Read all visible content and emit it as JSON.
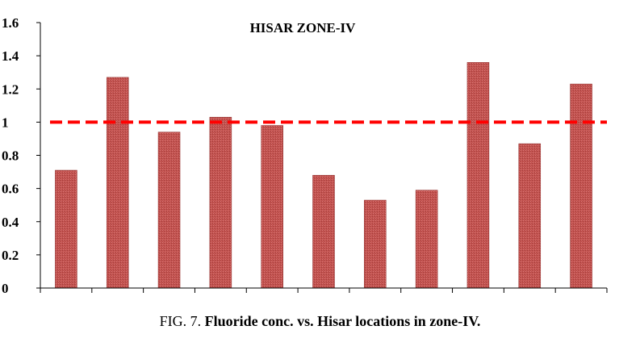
{
  "caption": {
    "prefix": "FIG. 7.",
    "text": "Fluoride conc. vs. Hisar locations in zone-IV."
  },
  "chart_data": {
    "type": "bar",
    "title": "HISAR ZONE-IV",
    "xlabel": "",
    "ylabel": "",
    "categories": [
      "",
      "",
      "",
      "",
      "",
      "",
      "",
      "",
      "",
      "",
      ""
    ],
    "values": [
      0.71,
      1.27,
      0.94,
      1.03,
      0.98,
      0.68,
      0.53,
      0.59,
      1.36,
      0.87,
      1.23
    ],
    "ylim": [
      0,
      1.6
    ],
    "yticks": [
      0,
      0.2,
      0.4,
      0.6,
      0.8,
      1,
      1.2,
      1.4,
      1.6
    ],
    "ytick_labels": [
      "0",
      "0.2",
      "0.4",
      "0.6",
      "0.8",
      "1",
      "1.2",
      "1.4",
      "1.6"
    ],
    "reference_line": 1.0,
    "grid": false,
    "legend": "none",
    "colors": {
      "bar": "#c0504d",
      "bar_edge": "#8b2b2a",
      "reference_line": "#ff0000",
      "axis": "#000000"
    }
  }
}
